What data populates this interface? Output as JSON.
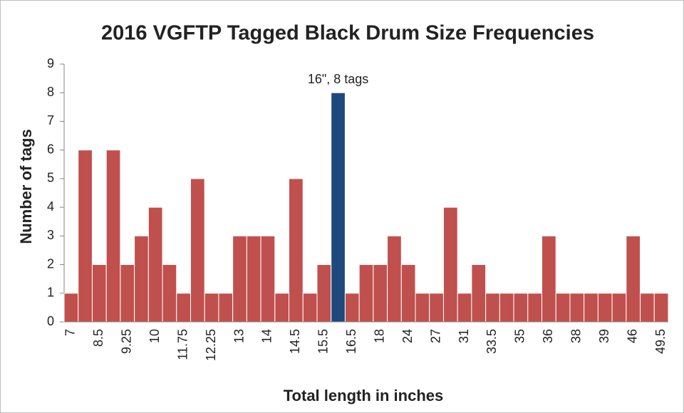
{
  "chart_data": {
    "type": "bar",
    "title": "2016 VGFTP Tagged Black Drum Size Frequencies",
    "x_label": "Total length in inches",
    "y_label": "Number of tags",
    "categories": [
      "7",
      null,
      "8.5",
      null,
      "9.25",
      null,
      "10",
      null,
      "11.75",
      null,
      "12.25",
      null,
      "13",
      null,
      "14",
      null,
      "14.5",
      null,
      "15.5",
      null,
      "16.5",
      null,
      "18",
      null,
      "24",
      null,
      "27",
      null,
      "31",
      null,
      "33.5",
      null,
      "35",
      null,
      "36",
      null,
      "38",
      null,
      "39",
      null,
      "46",
      null,
      "49.5"
    ],
    "values": [
      1,
      6,
      2,
      6,
      2,
      3,
      4,
      2,
      1,
      5,
      1,
      1,
      3,
      3,
      3,
      1,
      5,
      1,
      2,
      8,
      1,
      2,
      2,
      3,
      2,
      1,
      1,
      4,
      1,
      2,
      1,
      1,
      1,
      1,
      3,
      1,
      1,
      1,
      1,
      1,
      3,
      1,
      1
    ],
    "value_labels": [
      null,
      null,
      null,
      null,
      null,
      null,
      null,
      null,
      null,
      null,
      null,
      null,
      null,
      null,
      null,
      null,
      null,
      null,
      null,
      "16\", 8 tags",
      null,
      null,
      null,
      null,
      null,
      null,
      null,
      null,
      null,
      null,
      null,
      null,
      null,
      null,
      null,
      null,
      null,
      null,
      null,
      null,
      null,
      null,
      null
    ],
    "colors": [
      "#c0504d",
      "#c0504d",
      "#c0504d",
      "#c0504d",
      "#c0504d",
      "#c0504d",
      "#c0504d",
      "#c0504d",
      "#c0504d",
      "#c0504d",
      "#c0504d",
      "#c0504d",
      "#c0504d",
      "#c0504d",
      "#c0504d",
      "#c0504d",
      "#c0504d",
      "#c0504d",
      "#c0504d",
      "#1f497d",
      "#c0504d",
      "#c0504d",
      "#c0504d",
      "#c0504d",
      "#c0504d",
      "#c0504d",
      "#c0504d",
      "#c0504d",
      "#c0504d",
      "#c0504d",
      "#c0504d",
      "#c0504d",
      "#c0504d",
      "#c0504d",
      "#c0504d",
      "#c0504d",
      "#c0504d",
      "#c0504d",
      "#c0504d",
      "#c0504d",
      "#c0504d",
      "#c0504d",
      "#c0504d"
    ],
    "ylim": [
      0,
      9
    ],
    "yticks": [
      0,
      1,
      2,
      3,
      4,
      5,
      6,
      7,
      8,
      9
    ],
    "grid": false
  }
}
